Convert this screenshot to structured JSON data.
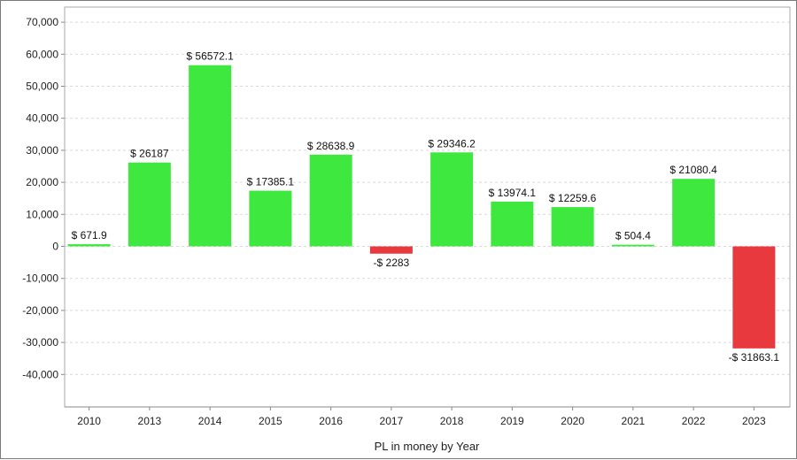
{
  "chart_data": {
    "type": "bar",
    "title": "",
    "xlabel": "PL in money by Year",
    "ylabel": "",
    "ylim": [
      -48000,
      72000
    ],
    "yticks": [
      70000,
      60000,
      50000,
      40000,
      30000,
      20000,
      10000,
      0,
      -10000,
      -20000,
      -30000,
      -40000
    ],
    "ytick_labels": [
      "70,000",
      "60,000",
      "50,000",
      "40,000",
      "30,000",
      "20,000",
      "10,000",
      "0",
      "-10,000",
      "-20,000",
      "-30,000",
      "-40,000"
    ],
    "grid": true,
    "legend": "none",
    "categories": [
      "2010",
      "2013",
      "2014",
      "2015",
      "2016",
      "2017",
      "2018",
      "2019",
      "2020",
      "2021",
      "2022",
      "2023"
    ],
    "values": [
      671.9,
      26187,
      56572.1,
      17385.1,
      28638.9,
      -2283,
      29346.2,
      13974.1,
      12259.6,
      504.4,
      21080.4,
      -31863.1
    ],
    "labels": [
      "$ 671.9",
      "$ 26187",
      "$ 56572.1",
      "$ 17385.1",
      "$ 28638.9",
      "-$ 2283",
      "$ 29346.2",
      "$ 13974.1",
      "$ 12259.6",
      "$ 504.4",
      "$ 21080.4",
      "-$ 31863.1"
    ],
    "colors": {
      "positive": "#3fe83f",
      "negative": "#e8393f",
      "grid": "#d9d9d9",
      "axis": "#888888",
      "plot_border": "#aaaaaa"
    }
  }
}
